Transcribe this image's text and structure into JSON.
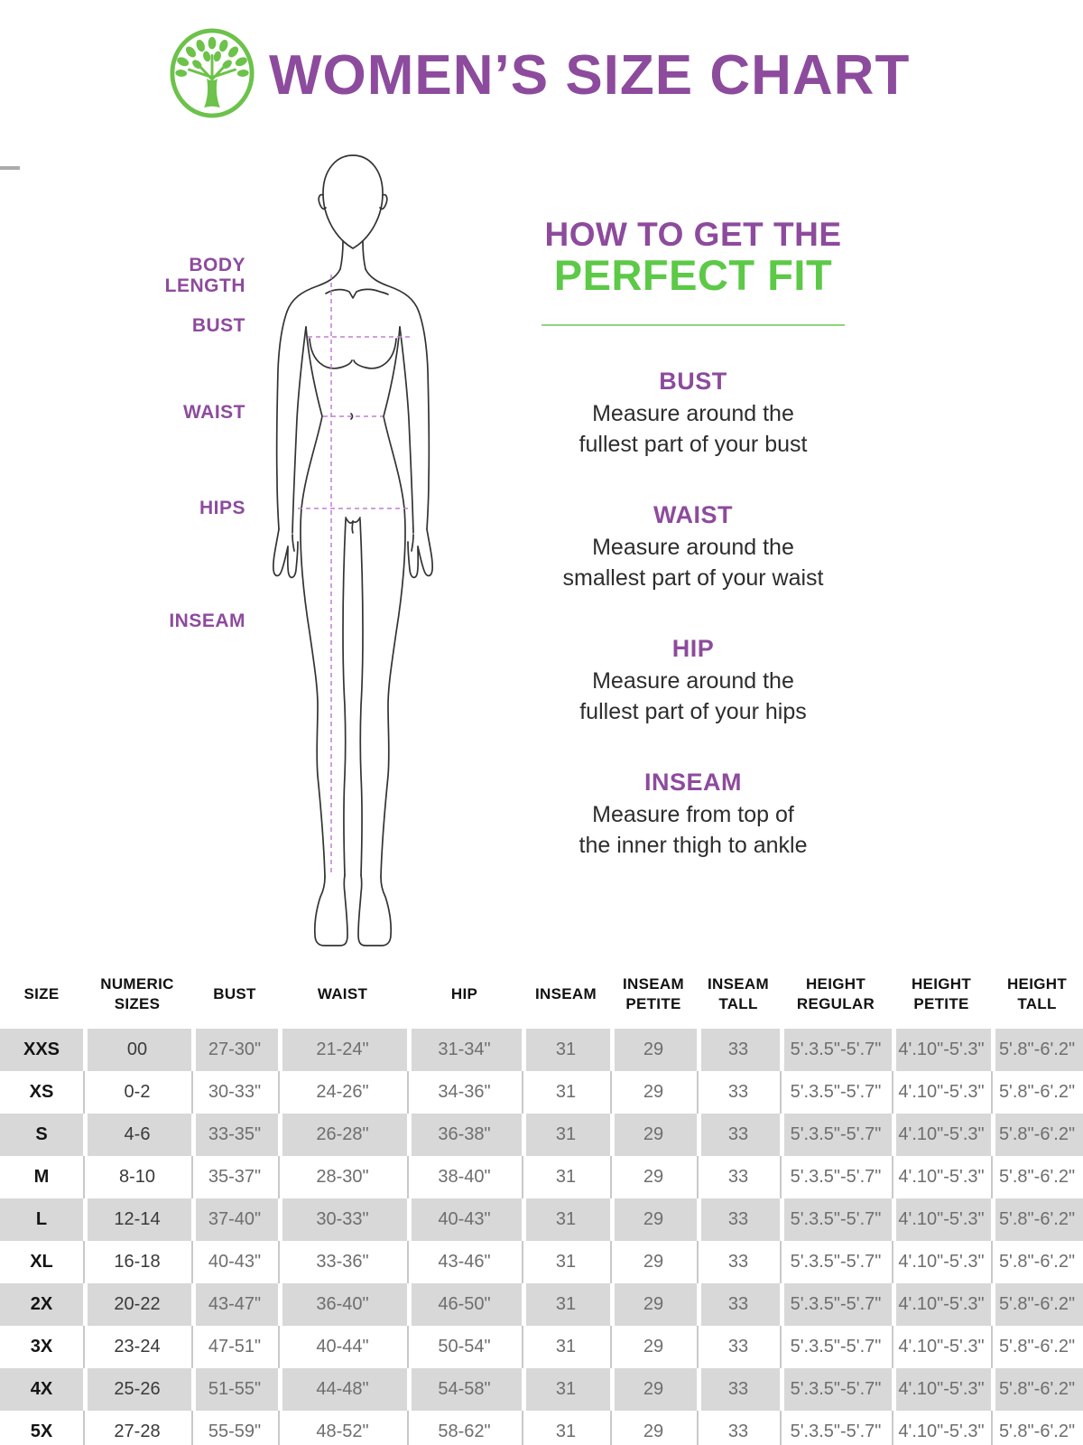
{
  "page": {
    "title": "WOMEN’S SIZE CHART"
  },
  "figure_labels": {
    "body_length": "BODY\nLENGTH",
    "bust": "BUST",
    "waist": "WAIST",
    "hips": "HIPS",
    "inseam": "INSEAM"
  },
  "fit_guide": {
    "heading_top": "HOW TO GET THE",
    "heading_bottom": "PERFECT FIT",
    "sections": [
      {
        "title": "BUST",
        "text": "Measure around the\nfullest part of your bust"
      },
      {
        "title": "WAIST",
        "text": "Measure around the\nsmallest part of your waist"
      },
      {
        "title": "HIP",
        "text": "Measure around the\nfullest part of your hips"
      },
      {
        "title": "INSEAM",
        "text": "Measure from top of\nthe inner thigh to ankle"
      }
    ]
  },
  "size_table": {
    "columns": [
      "SIZE",
      "NUMERIC\nSIZES",
      "BUST",
      "WAIST",
      "HIP",
      "INSEAM",
      "INSEAM\nPETITE",
      "INSEAM\nTALL",
      "HEIGHT\nREGULAR",
      "HEIGHT\nPETITE",
      "HEIGHT\nTALL"
    ],
    "rows": [
      [
        "XXS",
        "00",
        "27-30\"",
        "21-24\"",
        "31-34\"",
        "31",
        "29",
        "33",
        "5'.3.5\"-5'.7\"",
        "4'.10\"-5'.3\"",
        "5'.8\"-6'.2\""
      ],
      [
        "XS",
        "0-2",
        "30-33\"",
        "24-26\"",
        "34-36\"",
        "31",
        "29",
        "33",
        "5'.3.5\"-5'.7\"",
        "4'.10\"-5'.3\"",
        "5'.8\"-6'.2\""
      ],
      [
        "S",
        "4-6",
        "33-35\"",
        "26-28\"",
        "36-38\"",
        "31",
        "29",
        "33",
        "5'.3.5\"-5'.7\"",
        "4'.10\"-5'.3\"",
        "5'.8\"-6'.2\""
      ],
      [
        "M",
        "8-10",
        "35-37\"",
        "28-30\"",
        "38-40\"",
        "31",
        "29",
        "33",
        "5'.3.5\"-5'.7\"",
        "4'.10\"-5'.3\"",
        "5'.8\"-6'.2\""
      ],
      [
        "L",
        "12-14",
        "37-40\"",
        "30-33\"",
        "40-43\"",
        "31",
        "29",
        "33",
        "5'.3.5\"-5'.7\"",
        "4'.10\"-5'.3\"",
        "5'.8\"-6'.2\""
      ],
      [
        "XL",
        "16-18",
        "40-43\"",
        "33-36\"",
        "43-46\"",
        "31",
        "29",
        "33",
        "5'.3.5\"-5'.7\"",
        "4'.10\"-5'.3\"",
        "5'.8\"-6'.2\""
      ],
      [
        "2X",
        "20-22",
        "43-47\"",
        "36-40\"",
        "46-50\"",
        "31",
        "29",
        "33",
        "5'.3.5\"-5'.7\"",
        "4'.10\"-5'.3\"",
        "5'.8\"-6'.2\""
      ],
      [
        "3X",
        "23-24",
        "47-51\"",
        "40-44\"",
        "50-54\"",
        "31",
        "29",
        "33",
        "5'.3.5\"-5'.7\"",
        "4'.10\"-5'.3\"",
        "5'.8\"-6'.2\""
      ],
      [
        "4X",
        "25-26",
        "51-55\"",
        "44-48\"",
        "54-58\"",
        "31",
        "29",
        "33",
        "5'.3.5\"-5'.7\"",
        "4'.10\"-5'.3\"",
        "5'.8\"-6'.2\""
      ],
      [
        "5X",
        "27-28",
        "55-59\"",
        "48-52\"",
        "58-62\"",
        "31",
        "29",
        "33",
        "5'.3.5\"-5'.7\"",
        "4'.10\"-5'.3\"",
        "5'.8\"-6'.2\""
      ]
    ]
  },
  "colors": {
    "purple": "#8d4b9d",
    "green": "#5cc947",
    "logo_green": "#6cc24a",
    "row_shade": "#d8d8d8",
    "dashed_line": "#c47fd2"
  }
}
